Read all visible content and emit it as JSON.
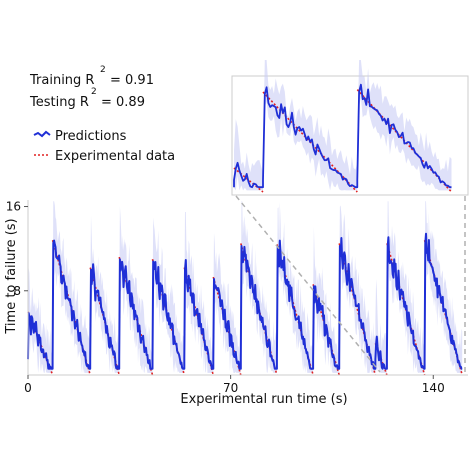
{
  "stats": {
    "training_label": "Training R",
    "training_exp": "2",
    "training_value": "= 0.91",
    "testing_label": "Testing R",
    "testing_exp": "2",
    "testing_value": "= 0.89"
  },
  "legend": {
    "placement": "top-left",
    "entries": [
      "Predictions",
      "Experimental data"
    ]
  },
  "colors": {
    "predictions": "#1f2fd6",
    "band": "#c9cdf5",
    "experimental": "#e02020",
    "zoom_lines": "#b0b0b0"
  },
  "chart_data": {
    "type": "line",
    "xlabel": "Experimental run time (s)",
    "ylabel": "Time to failure (s)",
    "xlim": [
      0,
      152
    ],
    "ylim": [
      0,
      17
    ],
    "xticks": [
      0,
      70,
      140
    ],
    "yticks": [
      8,
      16
    ],
    "grid": false,
    "inset": {
      "xrange": [
        120,
        152
      ],
      "position": "upper-right"
    },
    "series": [
      {
        "name": "Predictions",
        "style": "line-with-band"
      },
      {
        "name": "Experimental data",
        "style": "dotted"
      }
    ],
    "cycles": [
      {
        "start": 0,
        "end": 8.5,
        "peak": 6.0
      },
      {
        "start": 8.5,
        "end": 21.5,
        "peak": 12.8
      },
      {
        "start": 21.5,
        "end": 31.5,
        "peak": 10.2
      },
      {
        "start": 31.5,
        "end": 43.0,
        "peak": 11.2
      },
      {
        "start": 43.0,
        "end": 54.0,
        "peak": 11.0
      },
      {
        "start": 54.0,
        "end": 64.0,
        "peak": 10.2
      },
      {
        "start": 64.0,
        "end": 73.5,
        "peak": 9.3
      },
      {
        "start": 73.5,
        "end": 86.0,
        "peak": 12.5
      },
      {
        "start": 86.0,
        "end": 98.5,
        "peak": 12.4
      },
      {
        "start": 98.5,
        "end": 107.5,
        "peak": 8.6
      },
      {
        "start": 107.5,
        "end": 120.0,
        "peak": 12.5
      },
      {
        "start": 120.0,
        "end": 124.0,
        "peak": 3.0
      },
      {
        "start": 124.0,
        "end": 137.0,
        "peak": 12.5
      },
      {
        "start": 137.0,
        "end": 150.0,
        "peak": 12.8
      }
    ]
  }
}
